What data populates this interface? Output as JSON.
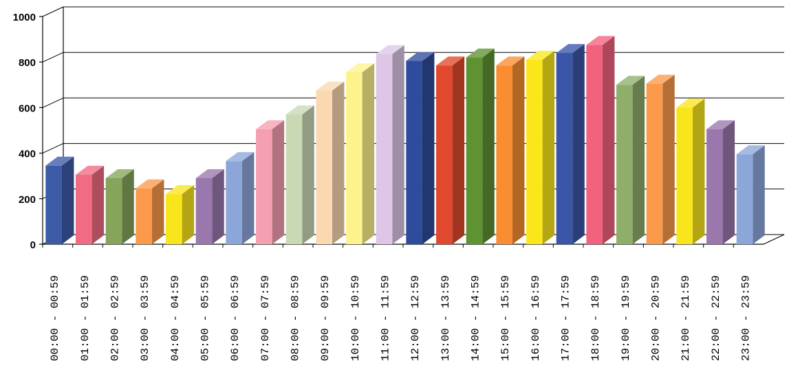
{
  "chart_data": {
    "type": "bar",
    "title": "",
    "xlabel": "",
    "ylabel": "",
    "ylim": [
      0,
      1000
    ],
    "yticks": [
      "0",
      "200",
      "400",
      "600",
      "800",
      "1000"
    ],
    "grid": true,
    "legend": "none",
    "categories": [
      "00:00 - 00:59",
      "01:00 - 01:59",
      "02:00 - 02:59",
      "03:00 - 03:59",
      "04:00 - 04:59",
      "05:00 - 05:59",
      "06:00 - 06:59",
      "07:00 - 07:59",
      "08:00 - 08:59",
      "09:00 - 09:59",
      "10:00 - 10:59",
      "11:00 - 11:59",
      "12:00 - 12:59",
      "13:00 - 13:59",
      "14:00 - 14:59",
      "15:00 - 15:59",
      "16:00 - 16:59",
      "17:00 - 17:59",
      "18:00 - 18:59",
      "19:00 - 19:59",
      "20:00 - 20:59",
      "21:00 - 21:59",
      "22:00 - 22:59",
      "23:00 - 23:59"
    ],
    "values": [
      345,
      305,
      290,
      245,
      220,
      290,
      365,
      505,
      570,
      675,
      755,
      835,
      805,
      785,
      820,
      785,
      810,
      840,
      875,
      700,
      705,
      600,
      505,
      395
    ],
    "colors": [
      "#3c5aa6",
      "#f06b83",
      "#86a55a",
      "#fb9a4b",
      "#f9e51c",
      "#9a78ad",
      "#8da6da",
      "#f5a0b0",
      "#c9d9b4",
      "#fad9b2",
      "#fdf38c",
      "#ddc6e6",
      "#2f4c9c",
      "#e0492d",
      "#5e9232",
      "#fa8d32",
      "#fbe61a",
      "#3a56a8",
      "#f2627e",
      "#8fae6a",
      "#fb9a4b",
      "#f9e51c",
      "#9a78ad",
      "#8da6da"
    ]
  }
}
